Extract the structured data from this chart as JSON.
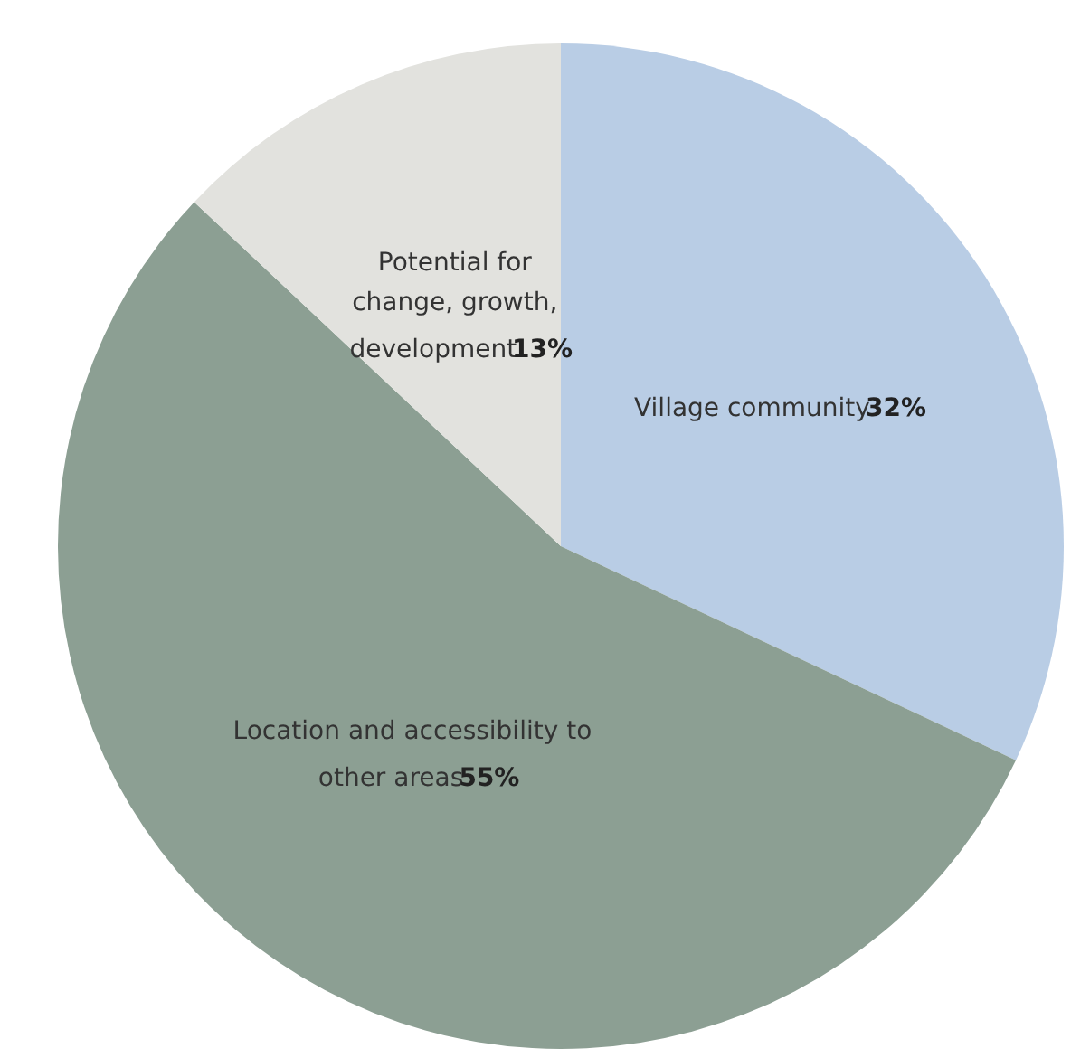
{
  "chart_data": {
    "type": "pie",
    "categories": [
      "Village community",
      "Location and accessibility to other areas",
      "Potential for change, growth, development"
    ],
    "values": [
      32,
      55,
      13
    ],
    "value_labels": [
      "32%",
      "55%",
      "13%"
    ],
    "colors": [
      "#b9cde5",
      "#8c9f93",
      "#e2e2de"
    ],
    "legend": false
  }
}
